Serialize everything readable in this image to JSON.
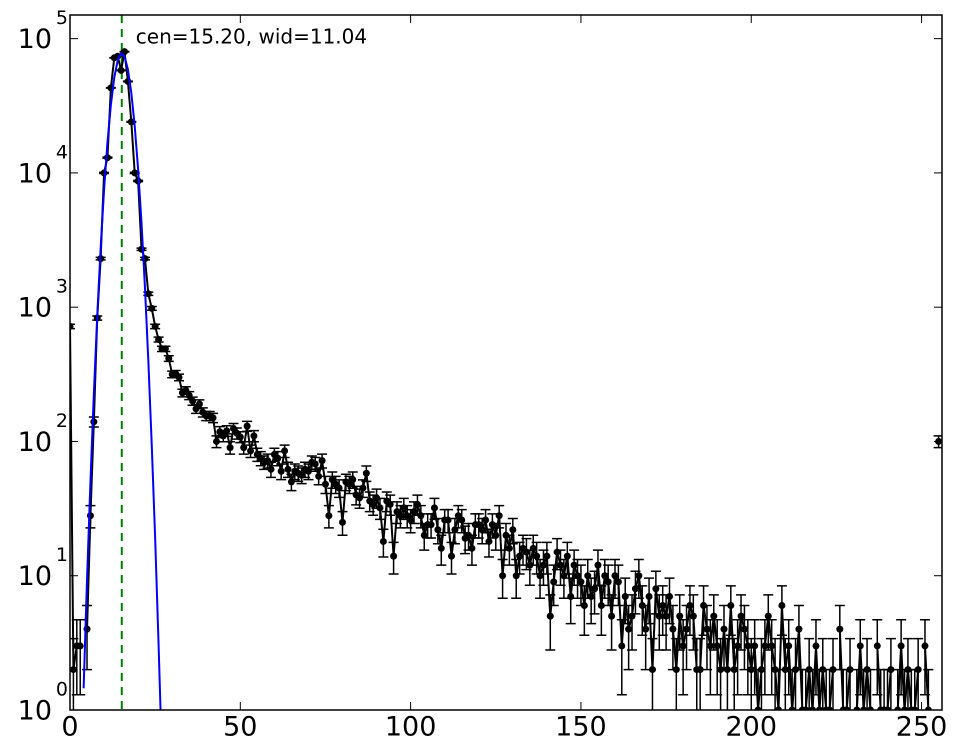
{
  "chart_data": {
    "type": "errorbar",
    "annotation": {
      "text": "cen=15.20, wid=11.04",
      "x": 15.2,
      "color": "#008000"
    },
    "xlim": [
      0,
      256
    ],
    "xticks": [
      0,
      50,
      100,
      150,
      200,
      250
    ],
    "ylim": [
      1,
      150000
    ],
    "log_y": true,
    "yticks": [
      {
        "value": 1,
        "label": "10",
        "exponent": "0"
      },
      {
        "value": 10,
        "label": "10",
        "exponent": "1"
      },
      {
        "value": 100,
        "label": "10",
        "exponent": "2"
      },
      {
        "value": 1000,
        "label": "10",
        "exponent": "3"
      },
      {
        "value": 10000,
        "label": "10",
        "exponent": "4"
      },
      {
        "value": 100000,
        "label": "10",
        "exponent": "5"
      }
    ],
    "series": [
      {
        "type": "errorbar",
        "color": "#000000",
        "x": [
          0,
          1,
          2,
          3,
          4,
          5,
          6,
          7,
          8,
          9,
          10,
          11,
          12,
          13,
          14,
          15,
          16,
          17,
          18,
          19,
          20,
          21,
          22,
          23,
          24,
          25,
          26,
          27,
          28,
          29,
          30,
          31,
          32,
          33,
          34,
          35,
          36,
          37,
          38,
          39,
          40,
          41,
          42,
          43,
          44,
          45,
          46,
          47,
          48,
          49,
          50,
          51,
          52,
          53,
          54,
          55,
          56,
          57,
          58,
          59,
          60,
          61,
          62,
          63,
          64,
          65,
          66,
          67,
          68,
          69,
          70,
          71,
          72,
          73,
          74,
          75,
          76,
          77,
          78,
          79,
          80,
          81,
          82,
          83,
          84,
          85,
          86,
          87,
          88,
          89,
          90,
          91,
          92,
          93,
          94,
          95,
          96,
          97,
          98,
          99,
          100,
          101,
          102,
          103,
          104,
          105,
          106,
          107,
          108,
          109,
          110,
          111,
          112,
          113,
          114,
          115,
          116,
          117,
          118,
          119,
          120,
          121,
          122,
          123,
          124,
          125,
          126,
          127,
          128,
          129,
          130,
          131,
          132,
          133,
          134,
          135,
          136,
          137,
          138,
          139,
          140,
          141,
          142,
          143,
          144,
          145,
          146,
          147,
          148,
          149,
          150,
          151,
          152,
          153,
          154,
          155,
          156,
          157,
          158,
          159,
          160,
          161,
          162,
          163,
          164,
          165,
          166,
          167,
          168,
          169,
          170,
          171,
          172,
          173,
          174,
          175,
          176,
          177,
          178,
          179,
          180,
          181,
          182,
          183,
          184,
          185,
          186,
          187,
          188,
          189,
          190,
          191,
          192,
          193,
          194,
          195,
          196,
          197,
          198,
          199,
          200,
          201,
          202,
          203,
          204,
          205,
          206,
          207,
          208,
          209,
          210,
          211,
          212,
          213,
          214,
          215,
          216,
          217,
          218,
          219,
          220,
          221,
          222,
          223,
          224,
          225,
          226,
          227,
          228,
          229,
          230,
          231,
          232,
          233,
          234,
          235,
          236,
          237,
          238,
          239,
          240,
          241,
          242,
          243,
          244,
          245,
          246,
          247,
          248,
          249,
          250,
          251,
          252,
          253,
          254,
          255
        ],
        "values": [
          720,
          2,
          3,
          3,
          null,
          4,
          28,
          140,
          830,
          2300,
          10000,
          13000,
          43000,
          72000,
          74000,
          58000,
          80000,
          48000,
          24000,
          10000,
          8700,
          2700,
          2300,
          1260,
          980,
          720,
          575,
          490,
          490,
          415,
          316,
          320,
          300,
          230,
          240,
          220,
          200,
          175,
          190,
          165,
          155,
          155,
          150,
          100,
          118,
          110,
          120,
          90,
          125,
          115,
          108,
          90,
          130,
          85,
          110,
          80,
          75,
          70,
          72,
          62,
          80,
          75,
          60,
          85,
          62,
          50,
          60,
          58,
          56,
          62,
          60,
          70,
          68,
          55,
          72,
          48,
          28,
          52,
          48,
          45,
          25,
          50,
          48,
          52,
          40,
          38,
          45,
          58,
          36,
          34,
          38,
          32,
          18,
          36,
          34,
          14,
          30,
          28,
          32,
          28,
          26,
          30,
          34,
          28,
          20,
          24,
          24,
          32,
          22,
          16,
          26,
          26,
          14,
          22,
          28,
          26,
          19,
          20,
          16,
          24,
          24,
          22,
          26,
          18,
          24,
          20,
          28,
          10,
          20,
          16,
          22,
          10,
          14,
          16,
          15,
          12,
          16,
          14,
          10,
          12,
          14,
          5,
          9,
          15,
          12,
          10,
          14,
          7,
          12,
          10,
          9,
          6,
          10,
          7,
          8,
          12,
          6,
          10,
          9,
          5,
          10,
          9,
          3,
          7,
          4,
          5,
          8,
          10,
          6,
          4,
          7,
          2,
          8,
          5,
          6,
          5,
          7,
          4,
          2,
          5,
          3,
          4,
          6,
          5,
          2,
          2,
          6,
          4,
          3,
          5,
          3,
          2,
          4,
          2,
          6,
          2,
          3,
          5,
          4,
          3,
          2,
          3,
          1,
          2,
          3,
          5,
          3,
          2,
          1,
          6,
          2,
          3,
          1,
          2,
          4,
          1,
          1,
          2,
          1,
          3,
          1,
          2,
          1,
          1,
          2,
          null,
          4,
          1,
          1,
          2,
          null,
          1,
          3,
          1,
          2,
          1,
          null,
          3,
          1,
          1,
          1,
          2,
          null,
          1,
          3,
          1,
          2,
          1,
          1,
          2,
          null,
          3,
          1,
          null,
          null,
          100
        ],
        "errors": [
          27,
          1.4,
          1.7,
          1.7,
          null,
          2,
          5.3,
          12,
          29,
          48,
          100,
          114,
          207,
          268,
          272,
          241,
          283,
          219,
          155,
          100,
          93,
          52,
          48,
          35,
          31,
          27,
          24,
          22,
          22,
          20,
          18,
          18,
          17,
          15,
          15.5,
          15,
          14,
          13,
          14,
          13,
          12,
          12,
          12,
          10,
          11,
          10.5,
          11,
          9.5,
          11,
          11,
          10,
          9.5,
          11,
          9,
          10.5,
          9,
          9,
          8,
          8.5,
          8,
          9,
          9,
          8,
          9,
          8,
          7,
          8,
          7.6,
          7.5,
          8,
          8,
          8,
          8,
          7.4,
          8.5,
          7,
          5.3,
          7.2,
          7,
          6.7,
          5,
          7,
          7,
          7.2,
          6.3,
          6.2,
          6.7,
          7.6,
          6,
          5.8,
          6.2,
          5.7,
          4.2,
          6,
          5.8,
          3.7,
          5.5,
          5.3,
          5.7,
          5.3,
          5.1,
          5.5,
          5.8,
          5.3,
          4.5,
          4.9,
          4.9,
          5.7,
          4.7,
          4,
          5.1,
          5.1,
          3.7,
          4.7,
          5.3,
          5.1,
          4.4,
          4.5,
          4,
          4.9,
          4.9,
          4.7,
          5.1,
          4.2,
          4.9,
          4.5,
          5.3,
          3.2,
          4.5,
          4,
          4.7,
          3.2,
          3.7,
          4,
          3.9,
          3.5,
          4,
          3.7,
          3.2,
          3.5,
          3.7,
          2.2,
          3,
          3.9,
          3.5,
          3.2,
          3.7,
          2.6,
          3.5,
          3.2,
          3,
          2.4,
          3.2,
          2.6,
          2.8,
          3.5,
          2.4,
          3.2,
          3,
          2.2,
          3.2,
          3,
          1.7,
          2.6,
          2,
          2.2,
          2.8,
          3.2,
          2.4,
          2,
          2.6,
          1.4,
          2.8,
          2.2,
          2.4,
          2.2,
          2.6,
          2,
          1.4,
          2.2,
          1.7,
          2,
          2.4,
          2.2,
          1.4,
          1.4,
          2.4,
          2,
          1.7,
          2.2,
          1.7,
          1.4,
          2,
          1.4,
          2.4,
          1.4,
          1.7,
          2.2,
          2,
          1.7,
          1.4,
          1.7,
          1,
          1.4,
          1.7,
          2.2,
          1.7,
          1.4,
          1,
          2.4,
          1.4,
          1.7,
          1,
          1.4,
          2,
          1,
          1,
          1.4,
          1,
          1.7,
          1,
          1.4,
          1,
          1,
          1.4,
          null,
          2,
          1,
          1,
          1.4,
          null,
          1,
          1.7,
          1,
          1.4,
          1,
          null,
          1.7,
          1,
          1,
          1,
          1.4,
          null,
          1,
          1.7,
          1,
          1.4,
          1,
          1,
          1.4,
          null,
          1.7,
          1,
          null,
          null,
          10
        ]
      },
      {
        "type": "line",
        "color": "#0000ff",
        "x": [
          4,
          5,
          6,
          7,
          8,
          9,
          10,
          11,
          12,
          13,
          14,
          15,
          16,
          17,
          18,
          19,
          20,
          21,
          22,
          23,
          24,
          25,
          26,
          27
        ],
        "values": [
          1.45,
          9.4,
          50,
          226,
          866,
          2770,
          7460,
          16900,
          32100,
          51200,
          68800,
          77700,
          73800,
          58900,
          39500,
          22300,
          10600,
          4210,
          1410,
          398,
          94,
          19,
          3.1,
          0.44
        ]
      }
    ]
  }
}
